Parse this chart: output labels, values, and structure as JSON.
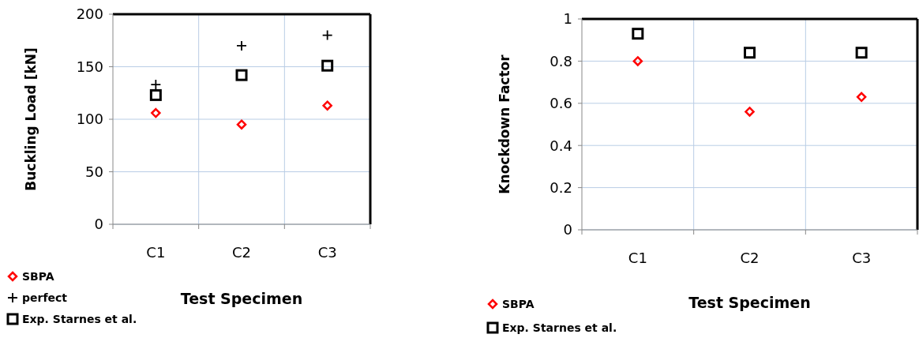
{
  "chart_data": [
    {
      "type": "scatter",
      "categories": [
        "C1",
        "C2",
        "C3"
      ],
      "xlabel": "Test Specimen",
      "ylabel": "Buckling Load [kN]",
      "ylim": [
        0,
        200
      ],
      "yticks": [
        0,
        50,
        100,
        150,
        200
      ],
      "grid": true,
      "legend": "bottom left",
      "series": [
        {
          "name": "SBPA",
          "color": "#ff0000",
          "marker": "diamond",
          "values": [
            106,
            95,
            113
          ]
        },
        {
          "name": "perfect",
          "color": "#000000",
          "marker": "cross",
          "values": [
            133,
            170,
            180
          ]
        },
        {
          "name": "Exp. Starnes et al.",
          "color": "#000000",
          "marker": "square",
          "values": [
            123,
            142,
            151
          ]
        }
      ]
    },
    {
      "type": "scatter",
      "categories": [
        "C1",
        "C2",
        "C3"
      ],
      "xlabel": "Test Specimen",
      "ylabel": "Knockdown Factor",
      "ylim": [
        0,
        1
      ],
      "yticks": [
        0,
        0.2,
        0.4,
        0.6,
        0.8,
        1
      ],
      "grid": true,
      "legend": "bottom left",
      "series": [
        {
          "name": "SBPA",
          "color": "#ff0000",
          "marker": "diamond",
          "values": [
            0.8,
            0.56,
            0.63
          ]
        },
        {
          "name": "Exp. Starnes et al.",
          "color": "#000000",
          "marker": "square",
          "values": [
            0.93,
            0.84,
            0.84
          ]
        }
      ]
    }
  ]
}
